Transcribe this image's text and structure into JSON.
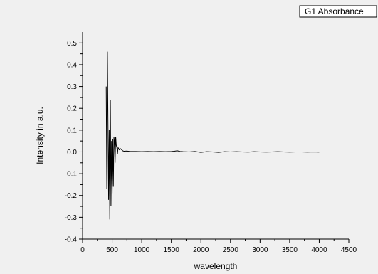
{
  "chart_data": {
    "type": "line",
    "legend": "G1 Absorbance",
    "legend_position": "top-right",
    "xlabel": "wavelength",
    "ylabel": "Intensity in a.u.",
    "xlim": [
      0,
      4500
    ],
    "ylim": [
      -0.4,
      0.55
    ],
    "grid": false,
    "xticks": [
      "0",
      "500",
      "1000",
      "1500",
      "2000",
      "2500",
      "3000",
      "3500",
      "4000",
      "4500"
    ],
    "yticks": [
      "-0.4",
      "-0.3",
      "-0.2",
      "-0.1",
      "0.0",
      "0.1",
      "0.2",
      "0.3",
      "0.4",
      "0.5"
    ],
    "line_color": "#000000",
    "series": [
      {
        "x": [
          400,
          410,
          420,
          430,
          440,
          450,
          460,
          470,
          480,
          490,
          500,
          510,
          520,
          530,
          540,
          550,
          560,
          570,
          580,
          590,
          600,
          620,
          640,
          660,
          680,
          700,
          750,
          800,
          900,
          1000,
          1100,
          1200,
          1300,
          1400,
          1500,
          1550,
          1600,
          1650,
          1700,
          1800,
          1900,
          2000,
          2100,
          2200,
          2300,
          2400,
          2500,
          2600,
          2700,
          2800,
          2900,
          3000,
          3100,
          3200,
          3300,
          3400,
          3500,
          3600,
          3700,
          3800,
          3900,
          4000
        ],
        "y": [
          0.3,
          -0.17,
          0.46,
          0.12,
          -0.22,
          0.1,
          -0.31,
          0.24,
          -0.25,
          0.05,
          -0.19,
          0.06,
          -0.16,
          0.07,
          0.04,
          -0.05,
          0.07,
          0.03,
          0.02,
          -0.01,
          0.02,
          0.01,
          0.015,
          0.01,
          0.005,
          0.003,
          0.004,
          0.002,
          0.002,
          0.001,
          0.002,
          0.001,
          0.002,
          0.001,
          0.002,
          0.003,
          0.005,
          0.002,
          0.001,
          0.0,
          0.002,
          -0.002,
          0.001,
          0.0,
          -0.002,
          0.001,
          0.0,
          0.001,
          0.0,
          -0.001,
          0.001,
          0.0,
          -0.001,
          0.0,
          0.001,
          0.0,
          -0.001,
          0.0,
          0.0,
          -0.001,
          0.0,
          -0.001
        ]
      }
    ]
  }
}
